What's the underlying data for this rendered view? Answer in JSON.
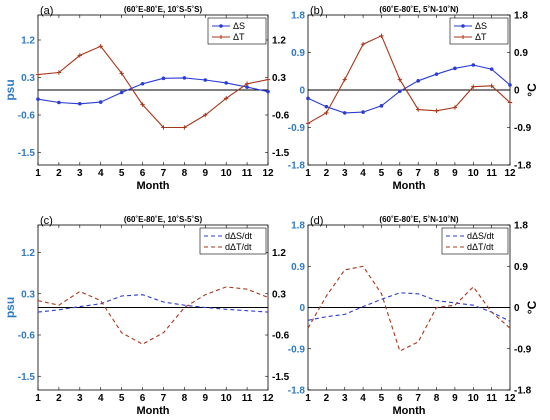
{
  "colors": {
    "salinity": "#2a3bd6",
    "temperature": "#a8361a",
    "left_axis": "#2f79c3"
  },
  "chart_data": [
    {
      "type": "line",
      "panel_label": "(a)",
      "title": "(60˚E-80˚E, 10˚S-5˚S)",
      "xlabel": "Month",
      "ylabel_left": "psu",
      "ylabel_right": "",
      "x": [
        1,
        2,
        3,
        4,
        5,
        6,
        7,
        8,
        9,
        10,
        11,
        12
      ],
      "ylim": [
        -1.8,
        1.8
      ],
      "yticks": [
        "-1.5",
        "-0.6",
        "0.3",
        "1.2"
      ],
      "yticks_right": [
        "-1.5",
        "-0.6",
        "0.3",
        "1.2"
      ],
      "legend_position": "top-right",
      "line_style": "solid",
      "series": [
        {
          "name": "ΔS",
          "axis": "left",
          "values": [
            -0.22,
            -0.3,
            -0.33,
            -0.29,
            -0.06,
            0.15,
            0.28,
            0.29,
            0.24,
            0.17,
            0.07,
            -0.04
          ]
        },
        {
          "name": "ΔT",
          "axis": "right",
          "values": [
            0.37,
            0.42,
            0.83,
            1.05,
            0.4,
            -0.35,
            -0.9,
            -0.9,
            -0.6,
            -0.2,
            0.15,
            0.25
          ]
        }
      ]
    },
    {
      "type": "line",
      "panel_label": "(b)",
      "title": "(60˚E-80˚E, 5˚N-10˚N)",
      "xlabel": "Month",
      "ylabel_left": "",
      "ylabel_right": "°C",
      "x": [
        1,
        2,
        3,
        4,
        5,
        6,
        7,
        8,
        9,
        10,
        11,
        12
      ],
      "ylim": [
        -1.8,
        1.8
      ],
      "yticks": [
        "-1.8",
        "-0.9",
        "0",
        "0.9",
        "1.8"
      ],
      "yticks_right": [
        "-1.8",
        "-0.9",
        "0",
        "0.9",
        "1.8"
      ],
      "legend_position": "top-right",
      "line_style": "solid",
      "series": [
        {
          "name": "ΔS",
          "axis": "left",
          "values": [
            -0.2,
            -0.4,
            -0.55,
            -0.53,
            -0.38,
            -0.03,
            0.22,
            0.38,
            0.52,
            0.6,
            0.5,
            0.12
          ]
        },
        {
          "name": "ΔT",
          "axis": "right",
          "values": [
            -0.8,
            -0.55,
            0.25,
            1.1,
            1.3,
            0.25,
            -0.47,
            -0.5,
            -0.42,
            0.08,
            0.1,
            -0.3
          ]
        }
      ]
    },
    {
      "type": "line",
      "panel_label": "(c)",
      "title": "(60˚E-80˚E, 10˚S-5˚S)",
      "xlabel": "Month",
      "ylabel_left": "psu",
      "ylabel_right": "",
      "x": [
        1,
        2,
        3,
        4,
        5,
        6,
        7,
        8,
        9,
        10,
        11,
        12
      ],
      "ylim": [
        -1.8,
        1.8
      ],
      "yticks": [
        "-1.5",
        "-0.6",
        "0.3",
        "1.2"
      ],
      "yticks_right": [
        "-1.5",
        "-0.6",
        "0.3",
        "1.2"
      ],
      "legend_position": "top-right",
      "line_style": "dashed",
      "series": [
        {
          "name": "dΔS/dt",
          "axis": "left",
          "values": [
            -0.1,
            -0.05,
            0.02,
            0.08,
            0.25,
            0.28,
            0.12,
            0.05,
            0.0,
            -0.04,
            -0.07,
            -0.1
          ]
        },
        {
          "name": "dΔT/dt",
          "axis": "right",
          "values": [
            0.15,
            0.05,
            0.35,
            0.15,
            -0.55,
            -0.8,
            -0.55,
            0.0,
            0.28,
            0.45,
            0.4,
            0.22
          ]
        }
      ]
    },
    {
      "type": "line",
      "panel_label": "(d)",
      "title": "(60˚E-80˚E, 5˚N-10˚N)",
      "xlabel": "Month",
      "ylabel_left": "",
      "ylabel_right": "°C",
      "x": [
        1,
        2,
        3,
        4,
        5,
        6,
        7,
        8,
        9,
        10,
        11,
        12
      ],
      "ylim": [
        -1.8,
        1.8
      ],
      "yticks": [
        "-1.8",
        "-0.9",
        "0",
        "0.9",
        "1.8"
      ],
      "yticks_right": [
        "-1.8",
        "-0.9",
        "0",
        "0.9",
        "1.8"
      ],
      "legend_position": "top-right",
      "line_style": "dashed",
      "series": [
        {
          "name": "dΔS/dt",
          "axis": "left",
          "values": [
            -0.28,
            -0.2,
            -0.15,
            0.02,
            0.18,
            0.32,
            0.3,
            0.15,
            0.1,
            0.05,
            -0.1,
            -0.3
          ]
        },
        {
          "name": "dΔT/dt",
          "axis": "right",
          "values": [
            -0.45,
            0.25,
            0.82,
            0.9,
            0.3,
            -0.95,
            -0.75,
            0.0,
            0.05,
            0.45,
            -0.1,
            -0.45
          ]
        }
      ]
    }
  ]
}
